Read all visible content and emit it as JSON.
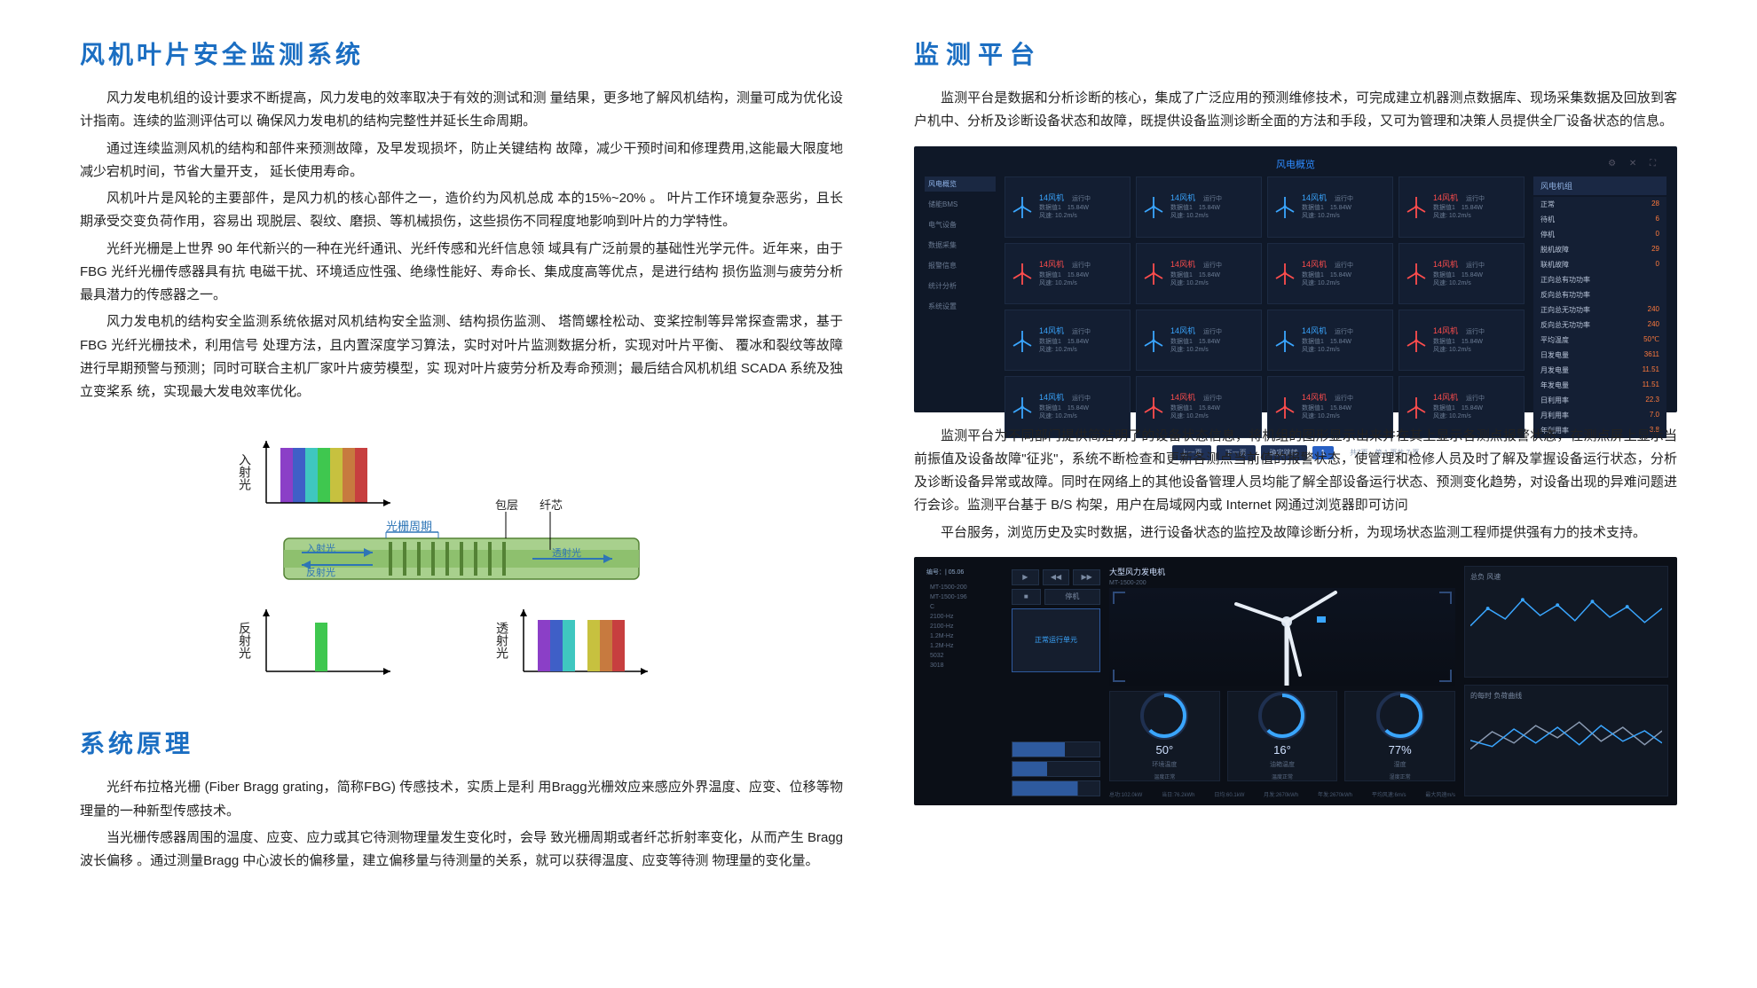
{
  "colors": {
    "heading_blue": "#1b6ec2",
    "body_text": "#222222",
    "dash_bg1": "#0f1828",
    "dash_bg2": "#0b0f17",
    "turbine_blue": "#3aa6ff",
    "turbine_red": "#ff4d4d",
    "accent_orange": "#ff7a3d",
    "fiber_tube": "#a8d08d",
    "fiber_core": "#70ad47"
  },
  "left": {
    "title1": "风机叶片安全监测系统",
    "p1": "风力发电机组的设计要求不断提高，风力发电的效率取决于有效的测试和测 量结果，更多地了解风机结构，测量可成为优化设计指南。连续的监测评估可以 确保风力发电机的结构完整性并延长生命周期。",
    "p2": "通过连续监测风机的结构和部件来预测故障，及早发现损坏，防止关键结构 故障，减少干预时间和修理费用,这能最大限度地减少宕机时间，节省大量开支， 延长使用寿命。",
    "p3": "风机叶片是风轮的主要部件，是风力机的核心部件之一，造价约为风机总成 本的15%~20% 。  叶片工作环境复杂恶劣，且长期承受交变负荷作用，容易出 现脱层、裂纹、磨损、等机械损伤，这些损伤不同程度地影响到叶片的力学特性。",
    "p4": "光纤光栅是上世界 90 年代新兴的一种在光纤通讯、光纤传感和光纤信息领 域具有广泛前景的基础性光学元件。近年来，由于 FBG 光纤光栅传感器具有抗 电磁干扰、环境适应性强、绝缘性能好、寿命长、集成度高等优点，是进行结构 损伤监测与疲劳分析最具潜力的传感器之一。",
    "p5": "风力发电机的结构安全监测系统依据对风机结构安全监测、结构损伤监测、 塔筒螺栓松动、变桨控制等异常探查需求，基于 FBG 光纤光栅技术，利用信号 处理方法，且内置深度学习算法，实时对叶片监测数据分析，实现对叶片平衡、 覆冰和裂纹等故障进行早期预警与预测；同时可联合主机厂家叶片疲劳模型，实 现对叶片疲劳分析及寿命预测；最后结合风机机组 SCADA 系统及独立变桨系  统，实现最大发电效率优化。",
    "fiber": {
      "label_incident": "入射光",
      "label_reflected": "反射光",
      "label_transmitted": "透射光",
      "label_period": "光栅周期",
      "label_cladding": "包层",
      "label_core": "纤芯",
      "spectrum_colors": [
        "#8b3fc7",
        "#3f5fc7",
        "#3fc7c0",
        "#3fc74f",
        "#c7c13f",
        "#c77a3f",
        "#c73f3f"
      ]
    },
    "title2": "系统原理",
    "p6": "光纤布拉格光栅 (Fiber Bragg grating，简称FBG) 传感技术，实质上是利 用Bragg光栅效应来感应外界温度、应变、位移等物理量的一种新型传感技术。",
    "p7": "当光栅传感器周围的温度、应变、应力或其它待测物理量发生变化时，会导 致光栅周期或者纤芯折射率变化，从而产生 Bragg 波长偏移 。通过测量Bragg 中心波长的偏移量，建立偏移量与待测量的关系，就可以获得温度、应变等待测 物理量的变化量。"
  },
  "right": {
    "title1": "监测平台",
    "p1": "监测平台是数据和分析诊断的核心，集成了广泛应用的预测维修技术，可完成建立机器测点数据库、现场采集数据及回放到客户机中、分析及诊断设备状态和故障，既提供设备监测诊断全面的方法和手段，又可为管理和决策人员提供全厂设备状态的信息。",
    "dash1": {
      "app_title": "风电概览",
      "nav_items": [
        "风电概览",
        "储能BMS",
        "电气设备",
        "数据采集",
        "报警信息",
        "统计分析",
        "系统设置"
      ],
      "turbines": [
        {
          "name": "14风机",
          "status": "运行中",
          "color": "blue",
          "v1": "数据值1",
          "v2": "15.84W",
          "v3": "风速: 10.2m/s"
        },
        {
          "name": "14风机",
          "status": "运行中",
          "color": "blue",
          "v1": "数据值1",
          "v2": "15.84W",
          "v3": "风速: 10.2m/s"
        },
        {
          "name": "14风机",
          "status": "运行中",
          "color": "blue",
          "v1": "数据值1",
          "v2": "15.84W",
          "v3": "风速: 10.2m/s"
        },
        {
          "name": "14风机",
          "status": "运行中",
          "color": "red",
          "v1": "数据值1",
          "v2": "15.84W",
          "v3": "风速: 10.2m/s"
        },
        {
          "name": "14风机",
          "status": "运行中",
          "color": "red",
          "v1": "数据值1",
          "v2": "15.84W",
          "v3": "风速: 10.2m/s"
        },
        {
          "name": "14风机",
          "status": "运行中",
          "color": "red",
          "v1": "数据值1",
          "v2": "15.84W",
          "v3": "风速: 10.2m/s"
        },
        {
          "name": "14风机",
          "status": "运行中",
          "color": "red",
          "v1": "数据值1",
          "v2": "15.84W",
          "v3": "风速: 10.2m/s"
        },
        {
          "name": "14风机",
          "status": "运行中",
          "color": "red",
          "v1": "数据值1",
          "v2": "15.84W",
          "v3": "风速: 10.2m/s"
        },
        {
          "name": "14风机",
          "status": "运行中",
          "color": "blue",
          "v1": "数据值1",
          "v2": "15.84W",
          "v3": "风速: 10.2m/s"
        },
        {
          "name": "14风机",
          "status": "运行中",
          "color": "blue",
          "v1": "数据值1",
          "v2": "15.84W",
          "v3": "风速: 10.2m/s"
        },
        {
          "name": "14风机",
          "status": "运行中",
          "color": "blue",
          "v1": "数据值1",
          "v2": "15.84W",
          "v3": "风速: 10.2m/s"
        },
        {
          "name": "14风机",
          "status": "运行中",
          "color": "red",
          "v1": "数据值1",
          "v2": "15.84W",
          "v3": "风速: 10.2m/s"
        },
        {
          "name": "14风机",
          "status": "运行中",
          "color": "blue",
          "v1": "数据值1",
          "v2": "15.84W",
          "v3": "风速: 10.2m/s"
        },
        {
          "name": "14风机",
          "status": "运行中",
          "color": "red",
          "v1": "数据值1",
          "v2": "15.84W",
          "v3": "风速: 10.2m/s"
        },
        {
          "name": "14风机",
          "status": "运行中",
          "color": "red",
          "v1": "数据值1",
          "v2": "15.84W",
          "v3": "风速: 10.2m/s"
        },
        {
          "name": "14风机",
          "status": "运行中",
          "color": "red",
          "v1": "数据值1",
          "v2": "15.84W",
          "v3": "风速: 10.2m/s"
        }
      ],
      "side_header": "风电机组",
      "side_rows": [
        {
          "k": "正常",
          "v": "28"
        },
        {
          "k": "待机",
          "v": "6"
        },
        {
          "k": "停机",
          "v": "0"
        },
        {
          "k": "脱机故障",
          "v": "29"
        },
        {
          "k": "联机故障",
          "v": "0"
        },
        {
          "k": "正向总有功功率",
          "v": ""
        },
        {
          "k": "反向总有功功率",
          "v": ""
        },
        {
          "k": "正向总无功功率",
          "v": "240"
        },
        {
          "k": "反向总无功功率",
          "v": "240"
        },
        {
          "k": "平均温度",
          "v": "50℃"
        },
        {
          "k": "日发电量",
          "v": "3611"
        },
        {
          "k": "月发电量",
          "v": "11.51"
        },
        {
          "k": "年发电量",
          "v": "11.51"
        },
        {
          "k": "日利用率",
          "v": "22.3"
        },
        {
          "k": "月利用率",
          "v": "7.0"
        },
        {
          "k": "年利用率",
          "v": "3.8"
        }
      ],
      "footer_prev": "上一页",
      "footer_next": "下一页",
      "footer_goto": "确定跳转",
      "footer_page": "1",
      "footer_info": "共7页　第 1 页共 7 页"
    },
    "p2": "监测平台为不同部门提供简洁明了的设备状态信息，将机组的图形显示出来并在其上显示各测点报警状态，在测点屏上显示当前振值及设备故障\"征兆\"，系统不断检查和更新各测点当前值的报警状态，使管理和检修人员及时了解及掌握设备运行状态，分析及诊断设备异常或故障。同时在网络上的其他设备管理人员均能了解全部设备运行状态、预测变化趋势，对设备出现的异难问题进行会诊。监测平台基于 B/S 构架，用户在局域网内或 Internet 网通过浏览器即可访问",
    "p3": "平台服务，浏览历史及实时数据，进行设备状态的监控及故障诊断分析，为现场状态监测工程师提供强有力的技术支持。",
    "dash2": {
      "header_left": "编号：| 05.06",
      "header_title": "大型风力发电机",
      "header_sub": "MT-1500-200",
      "sidebar_items": [
        "MT-1500-200",
        "MT-1500-196",
        "C",
        "2100-Hz",
        "2100-Hz",
        "1.2M-Hz",
        "1.2M-Hz",
        "5032",
        "3018"
      ],
      "ctrl_status": "停机",
      "ctrl_main": "正常运行单元",
      "gauges": [
        {
          "val": "50°",
          "sub": "环境温度",
          "sub2": "温度正常"
        },
        {
          "val": "16°",
          "sub": "油箱温度",
          "sub2": "温度正常"
        },
        {
          "val": "77%",
          "sub": "湿度",
          "sub2": "湿度正常"
        }
      ],
      "chart1_title": "总负 风速",
      "chart2_title": "的每时 负荷曲线",
      "footer_items": [
        "总功:102.0kW",
        "当日:76.2kWh",
        "日均:60.1kW",
        "月发:2670kWh",
        "年发:2670kWh",
        "平均风速:6m/s",
        "最大风速m/s"
      ]
    }
  }
}
